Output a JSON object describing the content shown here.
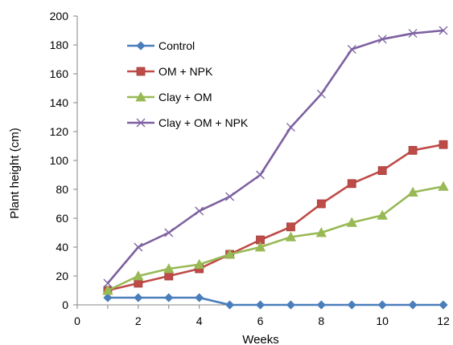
{
  "chart_data": {
    "type": "line",
    "xlabel": "Weeks",
    "ylabel": "Plant height (cm)",
    "xlim": [
      0,
      12
    ],
    "ylim": [
      0,
      200
    ],
    "xticks": [
      0,
      2,
      4,
      6,
      8,
      10,
      12
    ],
    "yticks": [
      0,
      20,
      40,
      60,
      80,
      100,
      120,
      140,
      160,
      180,
      200
    ],
    "grid": false,
    "legend_position": "top-left",
    "x": [
      1,
      2,
      3,
      4,
      5,
      6,
      7,
      8,
      9,
      10,
      11,
      12
    ],
    "series": [
      {
        "name": "Control",
        "color": "#4a7ebb",
        "marker": "diamond",
        "values": [
          5,
          5,
          5,
          5,
          0,
          0,
          0,
          0,
          0,
          0,
          0,
          0
        ]
      },
      {
        "name": "OM + NPK",
        "color": "#be4b48",
        "marker": "square",
        "values": [
          10,
          15,
          20,
          25,
          35,
          45,
          54,
          70,
          84,
          93,
          107,
          111
        ]
      },
      {
        "name": "Clay + OM",
        "color": "#98b954",
        "marker": "triangle",
        "values": [
          10,
          20,
          25,
          28,
          35,
          40,
          47,
          50,
          57,
          62,
          78,
          82
        ]
      },
      {
        "name": "Clay + OM + NPK",
        "color": "#7d60a0",
        "marker": "x",
        "values": [
          15,
          40,
          50,
          65,
          75,
          90,
          123,
          146,
          177,
          184,
          188,
          190
        ]
      }
    ]
  }
}
